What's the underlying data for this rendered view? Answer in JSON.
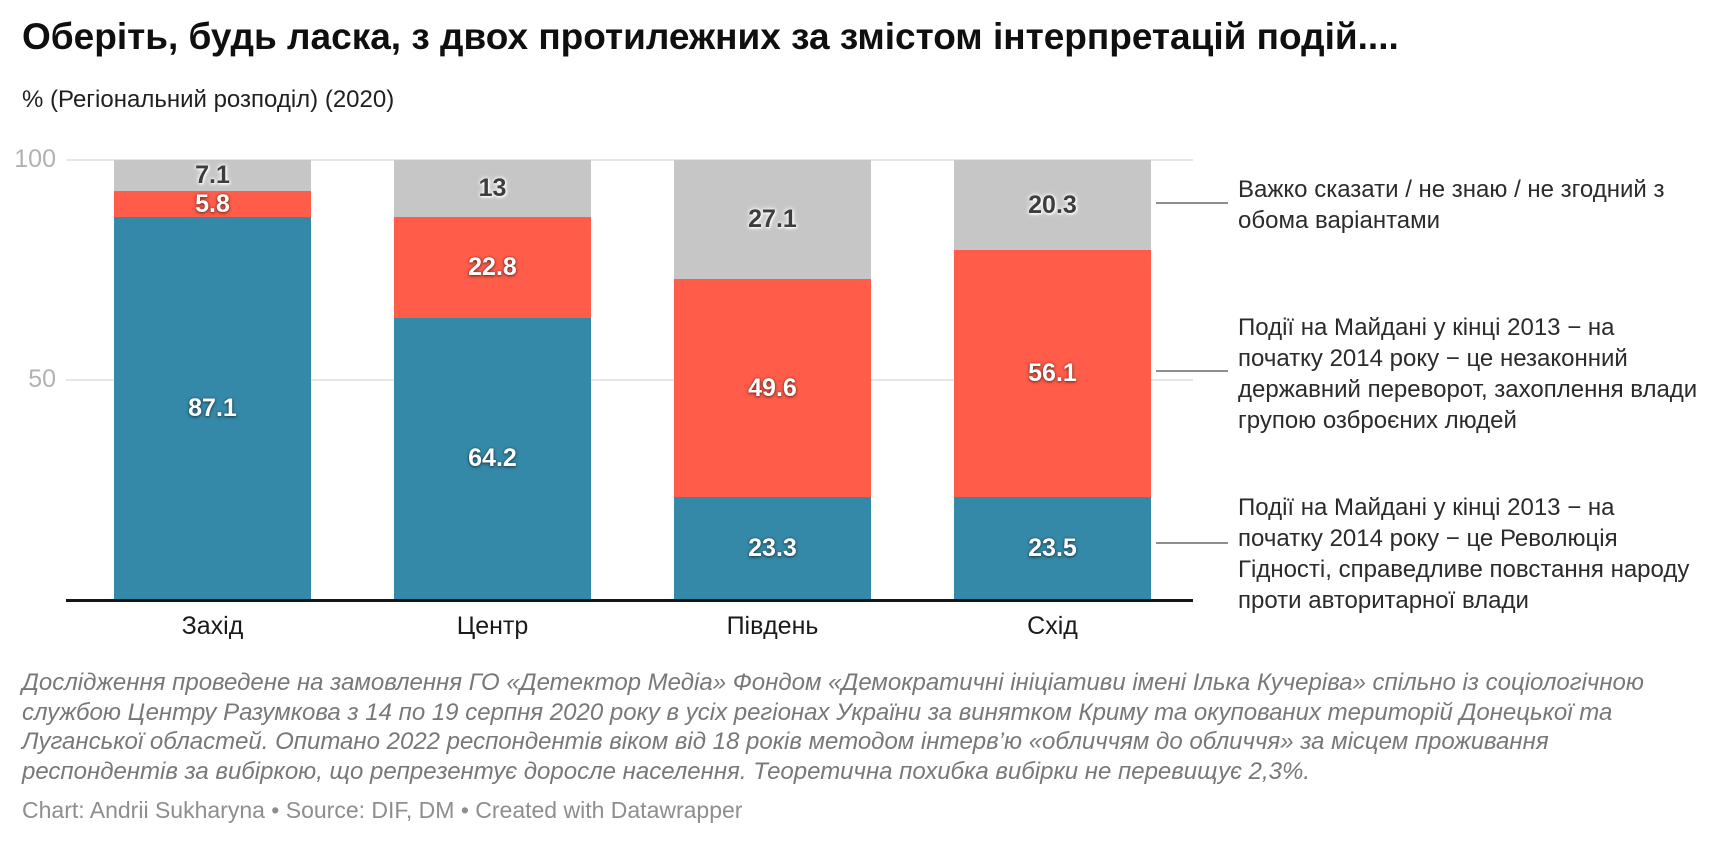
{
  "header": {
    "title": "Оберіть, будь ласка, з двох протилежних за змістом інтерпретацій подій....",
    "subtitle": "% (Регіональний розподіл) (2020)"
  },
  "chart_data": {
    "type": "bar",
    "stacked": true,
    "orientation": "vertical",
    "categories": [
      "Захід",
      "Центр",
      "Південь",
      "Схід"
    ],
    "series": [
      {
        "name": "Події на Майдані у кінці 2013 − на початку 2014 року − це Революція Гідності, справедливе повстання народу проти авторитарної влади",
        "color": "#3589a8",
        "values": [
          87.1,
          64.2,
          23.3,
          23.5
        ]
      },
      {
        "name": "Події на Майдані у кінці 2013 − на початку 2014 року − це незаконний державний переворот, захоплення влади групою озброєних людей",
        "color": "#ff5c49",
        "values": [
          5.8,
          22.8,
          49.6,
          56.1
        ]
      },
      {
        "name": "Важко сказати / не знаю / не згодний з обома варіантами",
        "color": "#c6c6c6",
        "values": [
          7.1,
          13,
          27.1,
          20.3
        ]
      }
    ],
    "ylim": [
      0,
      100
    ],
    "yticks": [
      50,
      100
    ],
    "grid": true,
    "legend_position": "right"
  },
  "footer": {
    "note": "Дослідження проведене на замовлення ГО «Детектор Медіа» Фондом «Демократичні ініціативи імені Ілька Кучеріва» спільно із соціологічною службою Центру Разумкова з 14 по 19 серпня 2020 року в усіх регіонах України за винятком Криму та окупованих територій Донецької та Луганської областей. Опитано 2022 респондентів віком від 18 років методом інтерв’ю «обличчям до обличчя» за місцем проживання респондентів за вибіркою, що репрезентує доросле населення. Теоретична похибка вибірки не перевищує 2,3%.",
    "byline": "Chart: Andrii Sukharyna • Source: DIF, DM • Created with Datawrapper"
  }
}
